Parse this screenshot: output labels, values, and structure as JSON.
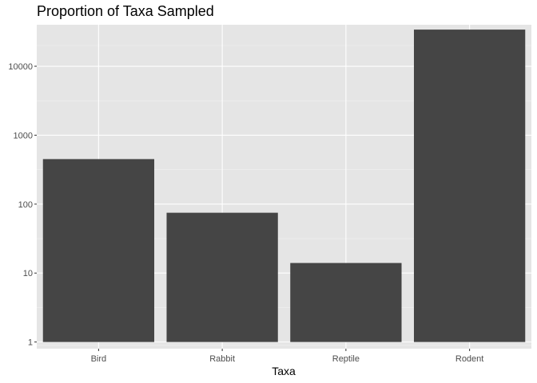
{
  "chart_data": {
    "type": "bar",
    "title": "Proportion of Taxa Sampled",
    "xlabel": "Taxa",
    "ylabel": "",
    "categories": [
      "Bird",
      "Rabbit",
      "Reptile",
      "Rodent"
    ],
    "values": [
      450,
      75,
      14,
      34000
    ],
    "y_scale": "log10",
    "ylim": [
      0.8,
      40000
    ],
    "y_ticks": [
      1,
      10,
      100,
      1000,
      10000
    ],
    "y_tick_labels": [
      "1",
      "10",
      "100",
      "1000",
      "10000"
    ],
    "grid": true,
    "legend": "none",
    "colors": {
      "bar": "#454545",
      "panel_background": "#e5e5e5",
      "grid_major": "#ffffff",
      "grid_minor": "#f2f2f2",
      "tick_label": "#4d4d4d"
    }
  }
}
